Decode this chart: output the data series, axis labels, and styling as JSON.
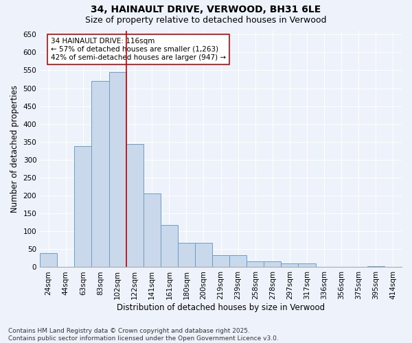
{
  "title": "34, HAINAULT DRIVE, VERWOOD, BH31 6LE",
  "subtitle": "Size of property relative to detached houses in Verwood",
  "xlabel": "Distribution of detached houses by size in Verwood",
  "ylabel": "Number of detached properties",
  "bar_color": "#c9d9eb",
  "bar_edge_color": "#6a9ec5",
  "background_color": "#eef2fa",
  "grid_color": "#ffffff",
  "categories": [
    "24sqm",
    "44sqm",
    "63sqm",
    "83sqm",
    "102sqm",
    "122sqm",
    "141sqm",
    "161sqm",
    "180sqm",
    "200sqm",
    "219sqm",
    "239sqm",
    "258sqm",
    "278sqm",
    "297sqm",
    "317sqm",
    "336sqm",
    "356sqm",
    "375sqm",
    "395sqm",
    "414sqm"
  ],
  "values": [
    40,
    0,
    338,
    520,
    545,
    343,
    205,
    117,
    67,
    67,
    33,
    33,
    16,
    16,
    11,
    11,
    0,
    0,
    0,
    2,
    0
  ],
  "property_line_x": 4.5,
  "property_line_color": "#cc0000",
  "annotation_line1": "34 HAINAULT DRIVE: 116sqm",
  "annotation_line2": "← 57% of detached houses are smaller (1,263)",
  "annotation_line3": "42% of semi-detached houses are larger (947) →",
  "annotation_box_color": "#ffffff",
  "annotation_box_edge_color": "#cc0000",
  "ylim": [
    0,
    660
  ],
  "yticks": [
    0,
    50,
    100,
    150,
    200,
    250,
    300,
    350,
    400,
    450,
    500,
    550,
    600,
    650
  ],
  "footer_text": "Contains HM Land Registry data © Crown copyright and database right 2025.\nContains public sector information licensed under the Open Government Licence v3.0.",
  "title_fontsize": 10,
  "subtitle_fontsize": 9,
  "label_fontsize": 8.5,
  "tick_fontsize": 7.5,
  "annotation_fontsize": 7.5,
  "footer_fontsize": 6.5
}
